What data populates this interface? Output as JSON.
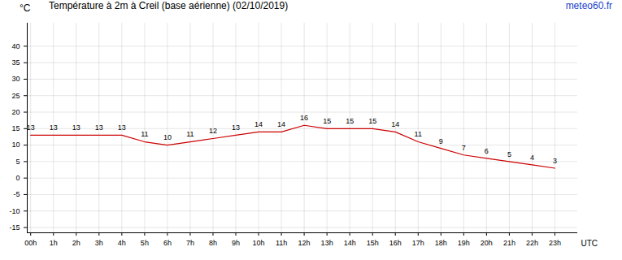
{
  "chart_data": {
    "type": "line",
    "title": "Température à 2m à Creil (base aérienne) (02/10/2019)",
    "source": "meteo60.fr",
    "y_label": "°C",
    "x_label": "UTC",
    "x": [
      0,
      1,
      2,
      3,
      4,
      5,
      6,
      7,
      8,
      9,
      10,
      11,
      12,
      13,
      14,
      15,
      16,
      17,
      18,
      19,
      20,
      21,
      22,
      23
    ],
    "series": [
      {
        "name": "Température",
        "color": "#cc0000",
        "values": [
          13,
          13,
          13,
          13,
          13,
          11,
          10,
          11,
          12,
          13,
          14,
          14,
          16,
          15,
          15,
          15,
          14,
          11,
          9,
          7,
          6,
          5,
          4,
          3
        ]
      }
    ],
    "xlim": [
      -0.15,
      24
    ],
    "xticks": [
      {
        "value": 0,
        "label": "00h"
      },
      {
        "value": 1,
        "label": "1h"
      },
      {
        "value": 2,
        "label": "2h"
      },
      {
        "value": 3,
        "label": "3h"
      },
      {
        "value": 4,
        "label": "4h"
      },
      {
        "value": 5,
        "label": "5h"
      },
      {
        "value": 6,
        "label": "6h"
      },
      {
        "value": 7,
        "label": "7h"
      },
      {
        "value": 8,
        "label": "8h"
      },
      {
        "value": 9,
        "label": "9h"
      },
      {
        "value": 10,
        "label": "10h"
      },
      {
        "value": 11,
        "label": "11h"
      },
      {
        "value": 12,
        "label": "12h"
      },
      {
        "value": 13,
        "label": "13h"
      },
      {
        "value": 14,
        "label": "14h"
      },
      {
        "value": 15,
        "label": "15h"
      },
      {
        "value": 16,
        "label": "16h"
      },
      {
        "value": 17,
        "label": "17h"
      },
      {
        "value": 18,
        "label": "18h"
      },
      {
        "value": 19,
        "label": "19h"
      },
      {
        "value": 20,
        "label": "20h"
      },
      {
        "value": 21,
        "label": "21h"
      },
      {
        "value": 22,
        "label": "22h"
      },
      {
        "value": 23,
        "label": "23h"
      }
    ],
    "ylim": [
      -16.6,
      47
    ],
    "yticks": [
      -15,
      -10,
      -5,
      0,
      5,
      10,
      15,
      20,
      25,
      30,
      35,
      40
    ],
    "grid": true,
    "data_labels": true
  }
}
